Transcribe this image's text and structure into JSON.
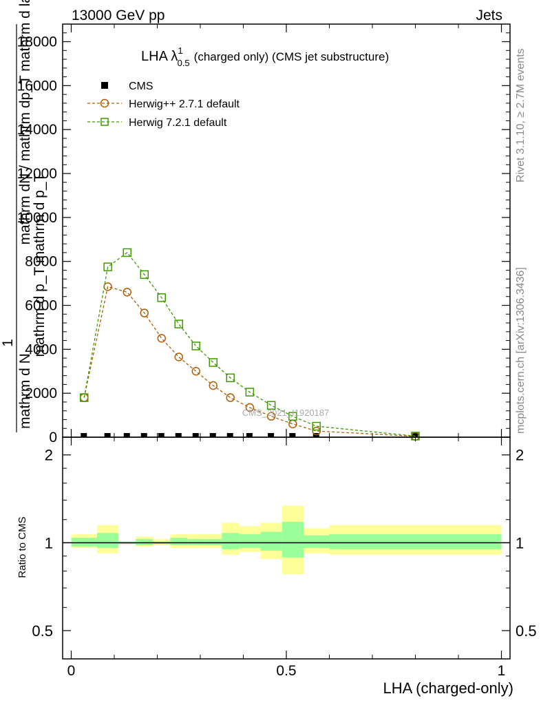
{
  "header": {
    "left": "13000 GeV pp",
    "right": "Jets"
  },
  "side_labels": {
    "rivet": "Rivet 3.1.10, ≥ 2.7M events",
    "mcplots": "mcplots.cern.ch [arXiv:1306.3436]"
  },
  "chart_data": [
    {
      "type": "line",
      "title_main": "LHA λ",
      "title_sup": "1",
      "title_sub": "0.5",
      "title_rest": "(charged only) (CMS jet substructure)",
      "ylabel_parts": [
        "1",
        "mathrm d N",
        "mathrm dN / mathrm dp_T mathrm d lambda",
        "mathrm d p_T mathrm d p_T"
      ],
      "watermark": "CMS_2021_I1920187",
      "ylim": [
        0,
        18800
      ],
      "y_ticks": [
        {
          "value": 0,
          "label": "0"
        },
        {
          "value": 2000,
          "label": "2000"
        },
        {
          "value": 4000,
          "label": "4000"
        },
        {
          "value": 6000,
          "label": "6000"
        },
        {
          "value": 8000,
          "label": "8000"
        },
        {
          "value": 10000,
          "label": "10000"
        },
        {
          "value": 12000,
          "label": "12000"
        },
        {
          "value": 14000,
          "label": "14000"
        },
        {
          "value": 16000,
          "label": "16000"
        },
        {
          "value": 18000,
          "label": "18000"
        }
      ],
      "xlim": [
        -0.02,
        1.02
      ],
      "series": [
        {
          "name": "CMS",
          "color": "#000000",
          "marker": "filled-square",
          "x": [
            0.03,
            0.085,
            0.13,
            0.17,
            0.21,
            0.25,
            0.29,
            0.33,
            0.37,
            0.415,
            0.465,
            0.515,
            0.57,
            0.8
          ],
          "values": [
            30,
            30,
            30,
            30,
            30,
            30,
            30,
            30,
            30,
            30,
            30,
            30,
            30,
            30
          ]
        },
        {
          "name": "Herwig++ 2.7.1 default",
          "color": "#b35a00",
          "marker": "open-circle",
          "x": [
            0.03,
            0.085,
            0.13,
            0.17,
            0.21,
            0.25,
            0.29,
            0.33,
            0.37,
            0.415,
            0.465,
            0.515,
            0.57,
            0.8
          ],
          "values": [
            1800,
            6850,
            6600,
            5650,
            4500,
            3650,
            3000,
            2350,
            1800,
            1350,
            950,
            600,
            280,
            40
          ]
        },
        {
          "name": "Herwig 7.2.1 default",
          "color": "#3d9a00",
          "marker": "open-square",
          "x": [
            0.03,
            0.085,
            0.13,
            0.17,
            0.21,
            0.25,
            0.29,
            0.33,
            0.37,
            0.415,
            0.465,
            0.515,
            0.57,
            0.8
          ],
          "values": [
            1800,
            7750,
            8400,
            7400,
            6350,
            5150,
            4150,
            3400,
            2700,
            2050,
            1450,
            950,
            500,
            50
          ]
        }
      ]
    },
    {
      "type": "area",
      "ylabel": "Ratio to CMS",
      "xlabel": "LHA (charged-only)",
      "ylim": [
        0.4,
        2.3
      ],
      "xlim": [
        -0.02,
        1.02
      ],
      "y_ticks": [
        {
          "value": 0.5,
          "label": "0.5"
        },
        {
          "value": 1,
          "label": "1"
        },
        {
          "value": 2,
          "label": "2"
        }
      ],
      "x_ticks": [
        {
          "value": 0,
          "label": "0"
        },
        {
          "value": 0.5,
          "label": "0.5"
        },
        {
          "value": 1,
          "label": "1"
        }
      ],
      "bands": {
        "edges": [
          0,
          0.06,
          0.11,
          0.15,
          0.19,
          0.23,
          0.27,
          0.31,
          0.35,
          0.39,
          0.44,
          0.49,
          0.54,
          0.6,
          1.0
        ],
        "outer_color": "#ffff99",
        "inner_color": "#99ff99",
        "outer_lo": [
          0.96,
          0.92,
          0.99,
          0.97,
          0.98,
          0.96,
          0.96,
          0.96,
          0.91,
          0.93,
          0.88,
          0.78,
          0.92,
          0.91
        ],
        "outer_hi": [
          1.07,
          1.15,
          1.01,
          1.05,
          1.03,
          1.07,
          1.07,
          1.07,
          1.17,
          1.14,
          1.17,
          1.34,
          1.12,
          1.15
        ],
        "inner_lo": [
          0.97,
          0.96,
          0.99,
          0.98,
          0.99,
          0.98,
          0.98,
          0.98,
          0.95,
          0.96,
          0.94,
          0.89,
          0.96,
          0.95
        ],
        "inner_hi": [
          1.04,
          1.08,
          1.01,
          1.03,
          1.01,
          1.04,
          1.03,
          1.03,
          1.08,
          1.07,
          1.09,
          1.18,
          1.06,
          1.07
        ]
      },
      "reference": 1
    }
  ]
}
